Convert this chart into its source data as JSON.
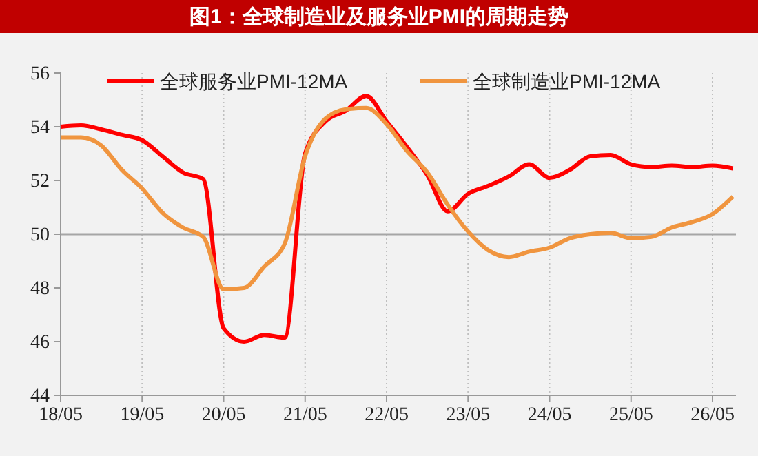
{
  "chart_data": {
    "type": "line",
    "title": "图1：全球制造业及服务业PMI的周期走势",
    "categories": [
      "18/05",
      null,
      null,
      null,
      "19/05",
      null,
      null,
      null,
      "20/05",
      null,
      null,
      null,
      "21/05",
      null,
      null,
      null,
      "22/05",
      null,
      null,
      null,
      "23/05",
      null,
      null,
      null,
      "24/05",
      null,
      null,
      null,
      "25/05",
      null,
      null,
      null,
      "26/05",
      null
    ],
    "ylim": [
      44,
      56
    ],
    "yticks": [
      44,
      46,
      48,
      50,
      52,
      54,
      56
    ],
    "grid": "x",
    "legend": "top",
    "line_style": "solid",
    "marker": "none",
    "ref_lines": [
      {
        "axis": "y",
        "value": 50,
        "color": "#a6a6a6"
      }
    ],
    "series": [
      {
        "name": "全球服务业PMI-12MA",
        "color": "#ff0000",
        "values": [
          54.0,
          54.05,
          53.9,
          53.7,
          53.5,
          52.9,
          52.3,
          52.05,
          46.5,
          46.0,
          46.25,
          46.15,
          53.0,
          54.2,
          54.6,
          55.15,
          54.2,
          53.25,
          52.2,
          50.85,
          51.5,
          51.8,
          52.15,
          52.6,
          52.1,
          52.4,
          52.9,
          52.95,
          52.6,
          52.5,
          52.55,
          52.5,
          52.55,
          52.45
        ]
      },
      {
        "name": "全球制造业PMI-12MA",
        "color": "#f0953f",
        "values": [
          53.6,
          53.6,
          53.3,
          52.4,
          51.7,
          50.8,
          50.25,
          49.9,
          47.95,
          48.0,
          48.8,
          49.65,
          52.9,
          54.3,
          54.65,
          54.7,
          54.1,
          53.1,
          52.3,
          51.1,
          50.1,
          49.4,
          49.15,
          49.35,
          49.5,
          49.85,
          50.0,
          50.05,
          49.85,
          49.9,
          50.25,
          50.45,
          50.75,
          51.4
        ]
      }
    ]
  }
}
